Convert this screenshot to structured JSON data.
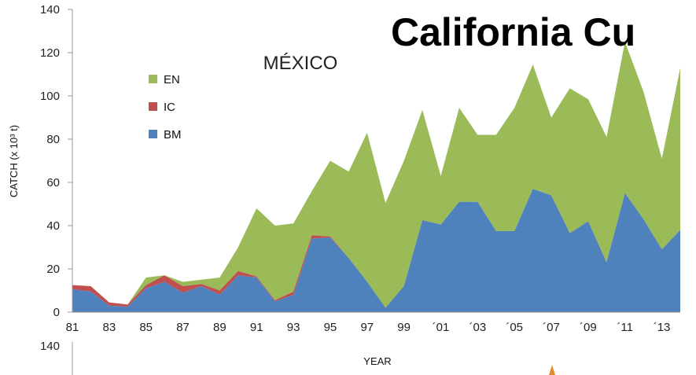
{
  "headline": "California Cu",
  "chart_data": {
    "type": "area",
    "stacked": true,
    "title": "MÉXICO",
    "xlabel": "YEAR",
    "ylabel": "CATCH (x 10³ t)",
    "ylim": [
      0,
      140
    ],
    "yticks": [
      0,
      20,
      40,
      60,
      80,
      100,
      120,
      140
    ],
    "x": [
      1981,
      1982,
      1983,
      1984,
      1985,
      1986,
      1987,
      1988,
      1989,
      1990,
      1991,
      1992,
      1993,
      1994,
      1995,
      1996,
      1997,
      1998,
      1999,
      2000,
      2001,
      2002,
      2003,
      2004,
      2005,
      2006,
      2007,
      2008,
      2009,
      2010,
      2011,
      2012,
      2013,
      2014
    ],
    "xtick_labels": [
      "81",
      "83",
      "85",
      "87",
      "89",
      "91",
      "93",
      "95",
      "97",
      "99",
      "´01",
      "´03",
      "´05",
      "´07",
      "´09",
      "´11",
      "´13"
    ],
    "xtick_years": [
      1981,
      1983,
      1985,
      1987,
      1989,
      1991,
      1993,
      1995,
      1997,
      1999,
      2001,
      2003,
      2005,
      2007,
      2009,
      2011,
      2013
    ],
    "legend": {
      "position": "top-left",
      "order": [
        "EN",
        "IC",
        "BM"
      ]
    },
    "series": [
      {
        "name": "BM",
        "color": "#4f81bd",
        "values": [
          10.5,
          9.5,
          3,
          2.5,
          11,
          14,
          9,
          12,
          8,
          17,
          16,
          5,
          8,
          34,
          34.5,
          25,
          14,
          2,
          12,
          42.5,
          40.5,
          51,
          51,
          37.5,
          37.5,
          57,
          54,
          36.5,
          42,
          23,
          55,
          43,
          29,
          38
        ]
      },
      {
        "name": "IC",
        "color": "#c0504d",
        "values": [
          2,
          2.5,
          1.5,
          1,
          1.5,
          3,
          3,
          1,
          2,
          2,
          0.5,
          0.5,
          1.5,
          1.5,
          0.5,
          0,
          0,
          0,
          0,
          0,
          0,
          0,
          0,
          0,
          0,
          0,
          0,
          0,
          0,
          0,
          0,
          0,
          0,
          0
        ]
      },
      {
        "name": "EN",
        "color": "#9bbb59",
        "values": [
          0,
          0,
          0,
          0,
          3.5,
          0,
          2,
          2,
          6,
          11,
          31.5,
          34.5,
          31.5,
          20.5,
          35,
          40,
          69,
          48.5,
          58,
          51,
          22.5,
          43.5,
          31,
          44.5,
          57,
          57.5,
          36,
          67,
          56.5,
          58,
          70,
          59,
          42,
          75
        ]
      }
    ]
  },
  "lower_chart": {
    "ytick_top": "140"
  }
}
